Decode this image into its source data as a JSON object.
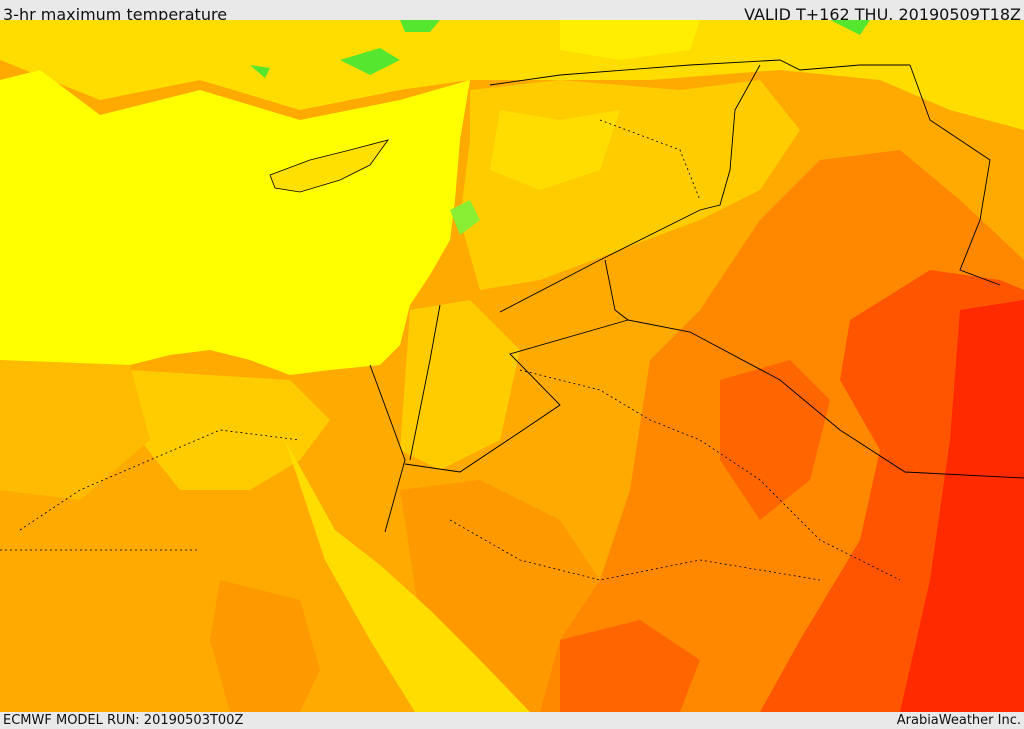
{
  "header": {
    "title": "3-hr maximum temperature",
    "valid": "VALID T+162 THU. 20190509T18Z"
  },
  "footer": {
    "model_run": "ECMWF MODEL RUN: 20190503T00Z",
    "credit": "ArabiaWeather Inc."
  }
}
